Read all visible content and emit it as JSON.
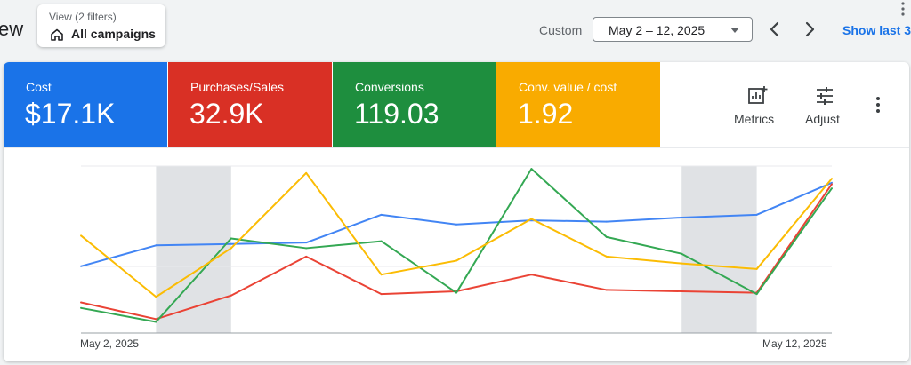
{
  "header": {
    "title_fragment": "ew",
    "view_filter": {
      "label": "View (2 filters)",
      "value": "All campaigns"
    },
    "custom_label": "Custom",
    "date_range": "May 2 – 12, 2025",
    "show_last": "Show last 3"
  },
  "metrics": [
    {
      "label": "Cost",
      "value": "$17.1K",
      "color": "#1a73e8"
    },
    {
      "label": "Purchases/Sales",
      "value": "32.9K",
      "color": "#d93025"
    },
    {
      "label": "Conversions",
      "value": "119.03",
      "color": "#1e8e3e"
    },
    {
      "label": "Conv. value / cost",
      "value": "1.92",
      "color": "#f9ab00"
    }
  ],
  "toolbar": {
    "metrics_label": "Metrics",
    "adjust_label": "Adjust"
  },
  "chart_data": {
    "type": "line",
    "x": [
      "May 2",
      "May 3",
      "May 4",
      "May 5",
      "May 6",
      "May 7",
      "May 8",
      "May 9",
      "May 10",
      "May 11",
      "May 12"
    ],
    "x_tick_labels": [
      "May 2, 2025",
      "May 12, 2025"
    ],
    "weekend_bands": [
      [
        "May 3",
        "May 4"
      ],
      [
        "May 10",
        "May 11"
      ]
    ],
    "grid": true,
    "series": [
      {
        "color": "#4285f4",
        "values": [
          48,
          63,
          64,
          65,
          85,
          78,
          81,
          80,
          83,
          85,
          108
        ]
      },
      {
        "color": "#ea4335",
        "values": [
          22,
          10,
          27,
          55,
          28,
          30,
          42,
          31,
          30,
          29,
          107
        ]
      },
      {
        "color": "#34a853",
        "values": [
          18,
          8,
          68,
          61,
          66,
          29,
          118,
          69,
          57,
          28,
          104
        ]
      },
      {
        "color": "#fbbc04",
        "values": [
          70,
          26,
          61,
          115,
          42,
          52,
          82,
          55,
          50,
          46,
          111
        ]
      }
    ]
  }
}
